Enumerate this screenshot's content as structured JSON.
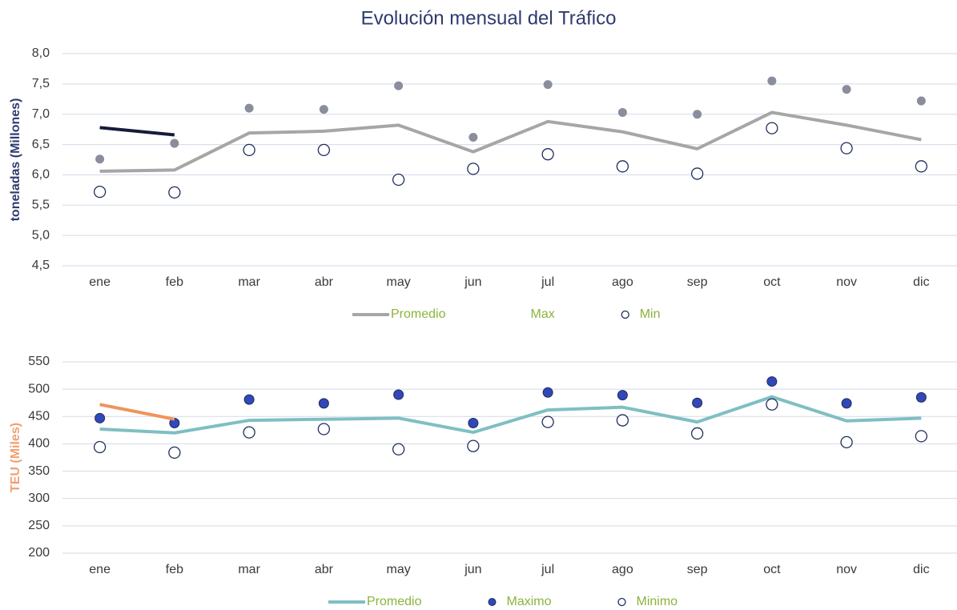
{
  "chart_data": [
    {
      "type": "line",
      "title": "Evolución mensual del Tráfico",
      "ylabel": "toneladas (Millones)",
      "ylabel_color": "#2e3a6e",
      "categories": [
        "ene",
        "feb",
        "mar",
        "abr",
        "may",
        "jun",
        "jul",
        "ago",
        "sep",
        "oct",
        "nov",
        "dic"
      ],
      "ylim": [
        4.5,
        8.0
      ],
      "yticks": [
        {
          "value": 4.5,
          "label": "4,5"
        },
        {
          "value": 5.0,
          "label": "5,0"
        },
        {
          "value": 5.5,
          "label": "5,5"
        },
        {
          "value": 6.0,
          "label": "6,0"
        },
        {
          "value": 6.5,
          "label": "6,5"
        },
        {
          "value": 7.0,
          "label": "7,0"
        },
        {
          "value": 7.5,
          "label": "7,5"
        },
        {
          "value": 8.0,
          "label": "8,0"
        }
      ],
      "grid": true,
      "series": [
        {
          "name": "Promedio",
          "type": "line",
          "color": "#a6a6a6",
          "values": [
            6.06,
            6.08,
            6.69,
            6.72,
            6.82,
            6.38,
            6.88,
            6.71,
            6.43,
            7.03,
            6.82,
            6.58
          ]
        },
        {
          "name": "Max",
          "type": "scatter",
          "marker": "filled",
          "color": "#8a8d9c",
          "values": [
            6.26,
            6.52,
            7.1,
            7.08,
            7.47,
            6.62,
            7.49,
            7.03,
            7.0,
            7.55,
            7.41,
            7.22
          ]
        },
        {
          "name": "Min",
          "type": "scatter",
          "marker": "open",
          "color": "#1f2d5c",
          "values": [
            5.72,
            5.71,
            6.41,
            6.41,
            5.92,
            6.1,
            6.34,
            6.14,
            6.02,
            6.77,
            6.44,
            6.14
          ]
        },
        {
          "type": "line",
          "color": "#141c3a",
          "values": [
            6.78,
            6.66,
            null,
            null,
            null,
            null,
            null,
            null,
            null,
            null,
            null,
            null
          ]
        }
      ]
    },
    {
      "type": "line",
      "ylabel": "TEU (Miles)",
      "ylabel_color": "#f0a070",
      "categories": [
        "ene",
        "feb",
        "mar",
        "abr",
        "may",
        "jun",
        "jul",
        "ago",
        "sep",
        "oct",
        "nov",
        "dic"
      ],
      "ylim": [
        200,
        550
      ],
      "yticks": [
        200,
        250,
        300,
        350,
        400,
        450,
        500,
        550
      ],
      "grid": true,
      "series": [
        {
          "name": "Promedio",
          "type": "line",
          "color": "#7fbfc2",
          "values": [
            427,
            420,
            443,
            445,
            447,
            421,
            462,
            467,
            440,
            486,
            442,
            447
          ]
        },
        {
          "name": "Maximo",
          "type": "scatter",
          "marker": "filled",
          "color": "#3048b8",
          "values": [
            447,
            438,
            481,
            474,
            490,
            438,
            494,
            489,
            475,
            514,
            474,
            485
          ]
        },
        {
          "name": "Minimo",
          "type": "scatter",
          "marker": "open",
          "color": "#1f2d5c",
          "values": [
            394,
            384,
            421,
            427,
            390,
            396,
            440,
            443,
            419,
            472,
            403,
            414
          ]
        },
        {
          "type": "line",
          "color": "#f0935c",
          "values": [
            472,
            445,
            null,
            null,
            null,
            null,
            null,
            null,
            null,
            null,
            null,
            null
          ]
        }
      ]
    }
  ]
}
